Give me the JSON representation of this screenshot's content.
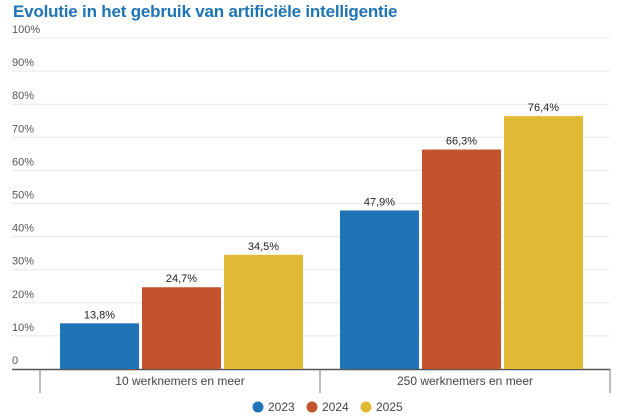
{
  "chart_data": {
    "type": "bar",
    "title": "Evolutie in het gebruik van artificiële intelligentie",
    "categories": [
      "10 werknemers en meer",
      "250 werknemers en meer"
    ],
    "series": [
      {
        "name": "2023",
        "color": "#1f74b5",
        "values": [
          13.8,
          47.9
        ],
        "labels": [
          "13,8%",
          "47,9%"
        ]
      },
      {
        "name": "2024",
        "color": "#c4532d",
        "values": [
          24.7,
          66.3
        ],
        "labels": [
          "24,7%",
          "66,3%"
        ]
      },
      {
        "name": "2025",
        "color": "#e2b935",
        "values": [
          34.5,
          76.4
        ],
        "labels": [
          "34,5%",
          "76,4%"
        ]
      }
    ],
    "ylim": [
      0,
      100
    ],
    "yticks": [
      0,
      10,
      20,
      30,
      40,
      50,
      60,
      70,
      80,
      90,
      100
    ],
    "ytick_labels": [
      "0",
      "10%",
      "20%",
      "30%",
      "40%",
      "50%",
      "60%",
      "70%",
      "80%",
      "90%",
      "100%"
    ],
    "grid": true,
    "legend": "bottom-center",
    "xlabel": "",
    "ylabel": ""
  }
}
